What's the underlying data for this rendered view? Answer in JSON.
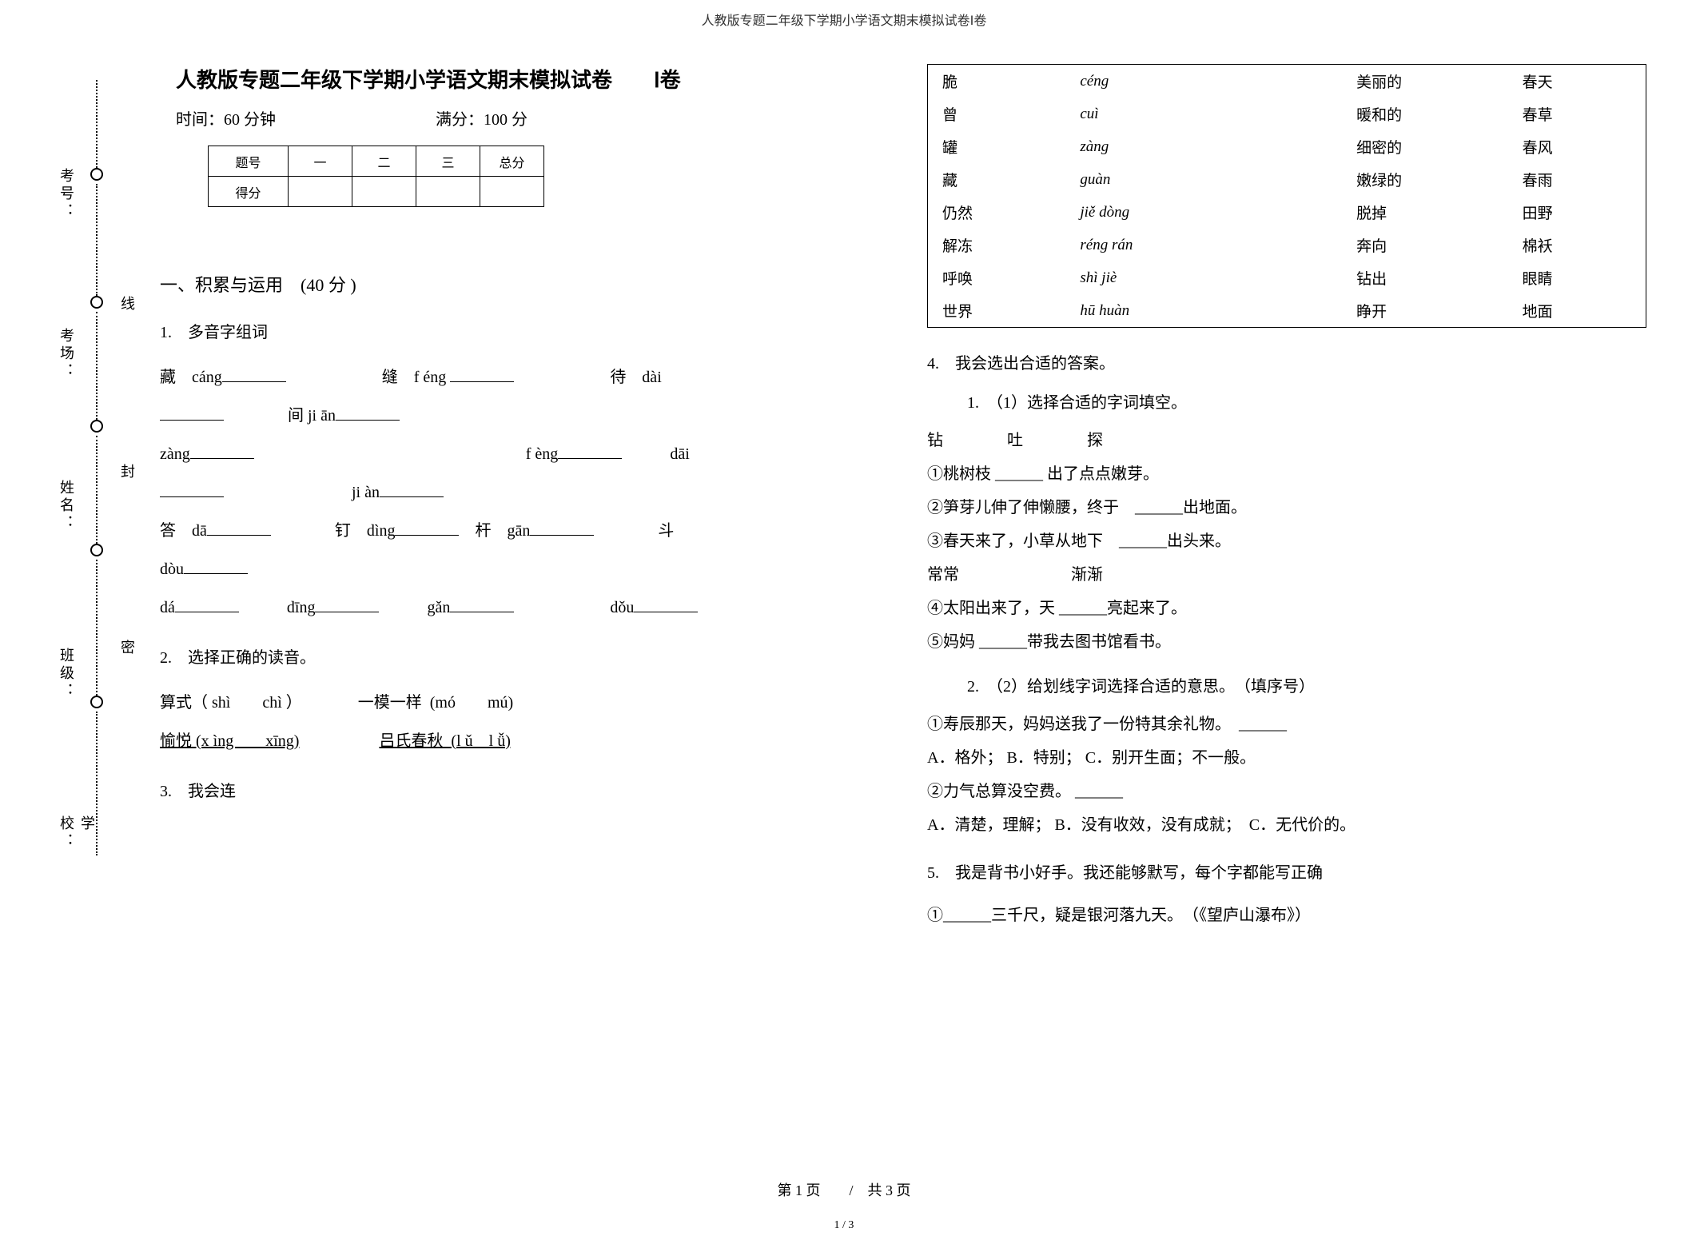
{
  "header": "人教版专题二年级下学期小学语文期末模拟试卷Ⅰ卷",
  "title": "人教版专题二年级下学期小学语文期末模拟试卷　　Ⅰ卷",
  "time_label": "时间：",
  "time_val": "60 分钟",
  "score_label": "满分：",
  "score_val": "100 分",
  "binding": {
    "school": "学校：",
    "class": "班级：",
    "name": "姓名：",
    "room": "考场：",
    "num": "考号：",
    "cut": "密",
    "fold": "封",
    "line": "线"
  },
  "score_table": {
    "h1": "题号",
    "h2": "一",
    "h3": "二",
    "h4": "三",
    "h5": "总分",
    "r2": "得分"
  },
  "section1": "一、积累与运用　(40 分 )",
  "q1": {
    "num": "1.　多音字组词",
    "l1a": "藏　cáng",
    "l1b": "缝　f éng",
    "l1c": "待　dài",
    "l2a": "间 ji ān",
    "l3a": "zàng",
    "l3b": "f èng",
    "l3c": "dāi",
    "l4a": "ji àn",
    "l5a": "答　dā",
    "l5b": "钉　dìng",
    "l5c": "杆　gān",
    "l5d": "斗",
    "l6a": "dòu",
    "l7a": "dá",
    "l7b": "dīng",
    "l7c": "gǎn",
    "l7d": "dǒu"
  },
  "q2": {
    "num": "2.　选择正确的读音。",
    "l1": "算式（ shì　　chì ）　　　　一模一样  (mó　　mú)",
    "l2a": "愉悦 (x ìng　　xīng)",
    "l2b": "吕氏春秋  (l ǔ　l ǚ)"
  },
  "q3": {
    "num": "3.　我会连"
  },
  "match": {
    "rows": [
      {
        "c1": "脆",
        "c2": "céng",
        "c3": "美丽的",
        "c4": "春天"
      },
      {
        "c1": "曾",
        "c2": "cuì",
        "c3": "暖和的",
        "c4": "春草"
      },
      {
        "c1": "罐",
        "c2": "zàng",
        "c3": "细密的",
        "c4": "春风"
      },
      {
        "c1": "藏",
        "c2": "guàn",
        "c3": "嫩绿的",
        "c4": "春雨"
      },
      {
        "c1": "仍然",
        "c2": "jiě  dòng",
        "c3": "脱掉",
        "c4": "田野"
      },
      {
        "c1": "解冻",
        "c2": "réng  rán",
        "c3": "奔向",
        "c4": "棉袄"
      },
      {
        "c1": "呼唤",
        "c2": "shì  jiè",
        "c3": "钻出",
        "c4": "眼睛"
      },
      {
        "c1": "世界",
        "c2": "hū  huàn",
        "c3": "睁开",
        "c4": "地面"
      }
    ]
  },
  "q4": {
    "num": "4.　我会选出合适的答案。",
    "sub1": "1.　（1）选择合适的字词填空。",
    "w1": "钻　　　　吐　　　　探",
    "l1": "①桃树枝  ______  出了点点嫩芽。",
    "l2": "②笋芽儿伸了伸懒腰，终于　______出地面。",
    "l3": "③春天来了，小草从地下　______出头来。",
    "w2": "常常　　　　　　　渐渐",
    "l4": "④太阳出来了，天  ______亮起来了。",
    "l5": "⑤妈妈  ______带我去图书馆看书。",
    "sub2": "2.　（2）给划线字词选择合适的意思。　（填序号）",
    "s1": "①寿辰那天，妈妈送我了一份特其余礼物。　______",
    "s1o": "A．格外；  B．特别；  C．别开生面；不一般。",
    "s2": "②力气总算没空费。  ______",
    "s2o": "A．清楚，理解；  B．没有收效，没有成就；　C．无代价的。"
  },
  "q5": {
    "num": "5.　我是背书小好手。我还能够默写，每个字都能写正确",
    "l1a": "①______三千尺，疑是银河落九天。　（《望庐山瀑布》）"
  },
  "footer": "第 1 页　　/　共 3 页",
  "frac": "1 / 3"
}
